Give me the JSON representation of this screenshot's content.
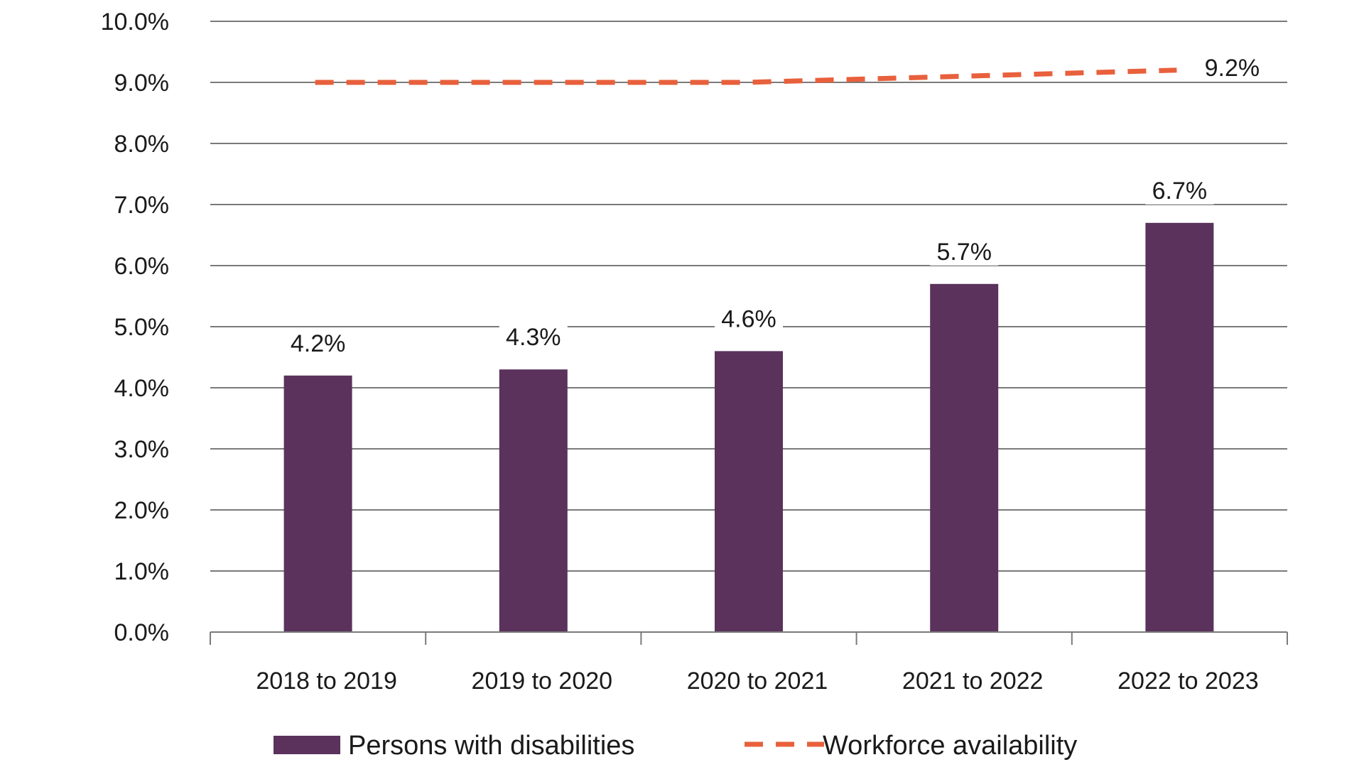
{
  "chart_data": {
    "type": "bar",
    "categories": [
      "2018 to 2019",
      "2019 to 2020",
      "2020 to 2021",
      "2021 to 2022",
      "2022 to 2023"
    ],
    "series": [
      {
        "name": "Persons with disabilities",
        "kind": "bar",
        "values": [
          4.2,
          4.3,
          4.6,
          5.7,
          6.7
        ],
        "labels": [
          "4.2%",
          "4.3%",
          "4.6%",
          "5.7%",
          "6.7%"
        ],
        "color": "#5a325c"
      },
      {
        "name": "Workforce availability",
        "kind": "line",
        "style": "dashed",
        "values": [
          9.0,
          9.0,
          9.0,
          9.1,
          9.2
        ],
        "end_label": "9.2%",
        "color": "#e8603c"
      }
    ],
    "ylim": [
      0,
      10
    ],
    "y_ticks": [
      "0.0%",
      "1.0%",
      "2.0%",
      "3.0%",
      "4.0%",
      "5.0%",
      "6.0%",
      "7.0%",
      "8.0%",
      "9.0%",
      "10.0%"
    ],
    "grid": true,
    "legend_position": "bottom",
    "title": "",
    "xlabel": "",
    "ylabel": ""
  }
}
